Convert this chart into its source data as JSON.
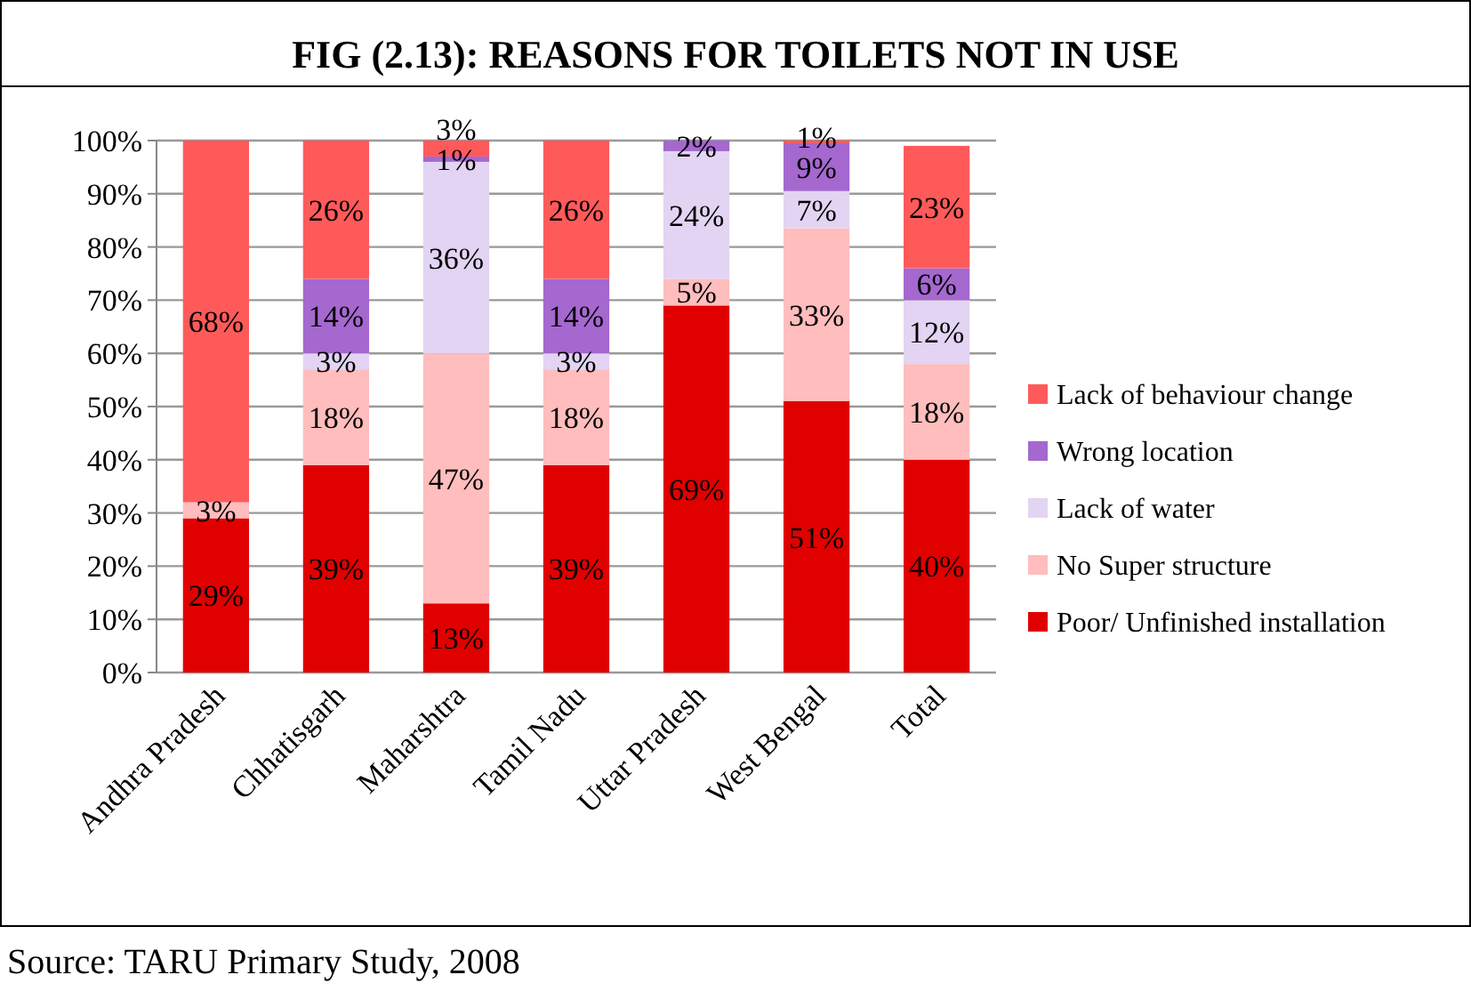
{
  "chart_data": {
    "type": "bar",
    "title": "FIG (2.13):  REASONS FOR TOILETS NOT IN USE",
    "categories": [
      "Andhra Pradesh",
      "Chhatisgarh",
      "Maharshtra",
      "Tamil Nadu",
      "Uttar Pradesh",
      "West Bengal",
      "Total"
    ],
    "stacked": true,
    "series": [
      {
        "name": "Poor/ Unfinished installation",
        "color": "#e00000",
        "values": [
          29,
          39,
          13,
          39,
          69,
          51,
          40
        ],
        "value_labels": [
          "29%",
          "39%",
          "13%",
          "39%",
          "69%",
          "51%",
          "40%"
        ]
      },
      {
        "name": "No Super structure",
        "color": "#ffbdbd",
        "values": [
          3,
          18,
          47,
          18,
          5,
          32.5,
          18
        ],
        "value_labels": [
          "3%",
          "18%",
          "47%",
          "18%",
          "5%",
          "33%",
          "18%"
        ]
      },
      {
        "name": "Lack of water",
        "color": "#e2d4f2",
        "values": [
          null,
          3,
          36,
          3,
          24,
          7,
          12
        ],
        "value_labels": [
          null,
          "3%",
          "36%",
          "3%",
          "24%",
          "7%",
          "12%"
        ]
      },
      {
        "name": "Wrong location",
        "color": "#a468cf",
        "values": [
          null,
          14,
          1,
          14,
          2,
          9,
          6
        ],
        "value_labels": [
          null,
          "14%",
          "1%",
          "14%",
          "2%",
          "9%",
          "6%"
        ]
      },
      {
        "name": "Lack of behaviour change",
        "color": "#ff5a5a",
        "values": [
          68,
          26,
          3,
          26,
          null,
          0.5,
          23
        ],
        "value_labels": [
          "68%",
          "26%",
          "3%",
          "26%",
          null,
          "1%",
          "23%"
        ]
      }
    ],
    "ylim": [
      0,
      100
    ],
    "yticks": [
      {
        "value": 0,
        "label": "0%"
      },
      {
        "value": 10,
        "label": "10%"
      },
      {
        "value": 20,
        "label": "20%"
      },
      {
        "value": 30,
        "label": "30%"
      },
      {
        "value": 40,
        "label": "40%"
      },
      {
        "value": 50,
        "label": "50%"
      },
      {
        "value": 60,
        "label": "60%"
      },
      {
        "value": 70,
        "label": "70%"
      },
      {
        "value": 80,
        "label": "80%"
      },
      {
        "value": 90,
        "label": "90%"
      },
      {
        "value": 100,
        "label": "100%"
      }
    ],
    "grid": "y",
    "legend": "right",
    "annotations": [
      "Source: TARU Primary Study, 2008"
    ]
  }
}
